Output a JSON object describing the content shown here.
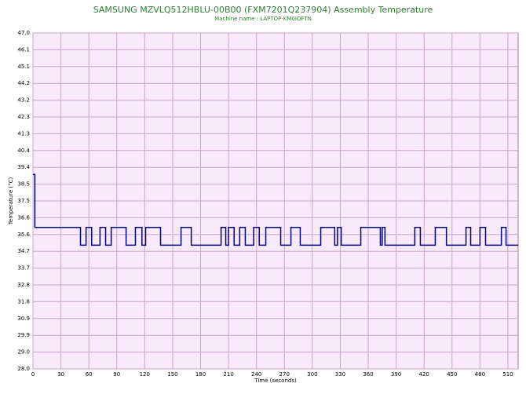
{
  "chart_data": {
    "type": "line",
    "title": "SAMSUNG MZVLQ512HBLU-00B00 (FXM7201Q237904) Assembly Temperature",
    "subtitle": "Machine name : LAPTOP-KM0IOFTN",
    "x_label": "Time (seconds)",
    "y_label": "Temperature (°C)",
    "x": [
      0,
      2,
      2,
      51,
      51,
      57,
      57,
      63,
      63,
      72,
      72,
      78,
      78,
      84,
      84,
      100,
      100,
      110,
      110,
      117,
      117,
      121,
      121,
      137,
      137,
      159,
      159,
      170,
      170,
      202,
      202,
      207,
      207,
      210,
      210,
      216,
      216,
      222,
      222,
      228,
      228,
      237,
      237,
      243,
      243,
      250,
      250,
      266,
      266,
      277,
      277,
      287,
      287,
      309,
      309,
      324,
      324,
      327,
      327,
      331,
      331,
      352,
      352,
      373,
      373,
      375,
      375,
      378,
      378,
      410,
      410,
      416,
      416,
      432,
      432,
      444,
      444,
      465,
      465,
      470,
      470,
      480,
      480,
      486,
      486,
      503,
      503,
      508,
      508,
      521
    ],
    "series": [
      {
        "name": "Temperature",
        "color": "#000080",
        "values": [
          39,
          39,
          36,
          36,
          35,
          35,
          36,
          36,
          35,
          35,
          36,
          36,
          35,
          35,
          36,
          36,
          35,
          35,
          36,
          36,
          35,
          35,
          36,
          36,
          35,
          35,
          36,
          36,
          35,
          35,
          36,
          36,
          35,
          35,
          36,
          36,
          35,
          35,
          36,
          36,
          35,
          35,
          36,
          36,
          35,
          35,
          36,
          36,
          35,
          35,
          36,
          36,
          35,
          35,
          36,
          36,
          35,
          35,
          36,
          36,
          35,
          35,
          36,
          36,
          35,
          35,
          36,
          36,
          35,
          35,
          36,
          36,
          35,
          35,
          36,
          36,
          35,
          35,
          36,
          36,
          35,
          35,
          36,
          36,
          35,
          35,
          36,
          36,
          35,
          35
        ]
      }
    ],
    "xlim": [
      0,
      521
    ],
    "ylim": [
      28,
      47
    ],
    "xticks": [
      0,
      30,
      60,
      90,
      120,
      150,
      180,
      210,
      240,
      270,
      300,
      330,
      360,
      390,
      420,
      450,
      480,
      510
    ],
    "yticks": [
      {
        "value": 47,
        "label": "47.0"
      },
      {
        "value": 46.05,
        "label": "46.1"
      },
      {
        "value": 45.1,
        "label": "45.1"
      },
      {
        "value": 44.15,
        "label": "44.2"
      },
      {
        "value": 43.2,
        "label": "43.2"
      },
      {
        "value": 42.25,
        "label": "42.3"
      },
      {
        "value": 41.3,
        "label": "41.3"
      },
      {
        "value": 40.35,
        "label": "40.4"
      },
      {
        "value": 39.4,
        "label": "39.4"
      },
      {
        "value": 38.45,
        "label": "38.5"
      },
      {
        "value": 37.5,
        "label": "37.5"
      },
      {
        "value": 36.55,
        "label": "36.6"
      },
      {
        "value": 35.6,
        "label": "35.6"
      },
      {
        "value": 34.65,
        "label": "34.7"
      },
      {
        "value": 33.7,
        "label": "33.7"
      },
      {
        "value": 32.75,
        "label": "32.8"
      },
      {
        "value": 31.8,
        "label": "31.8"
      },
      {
        "value": 30.85,
        "label": "30.9"
      },
      {
        "value": 29.9,
        "label": "29.9"
      },
      {
        "value": 28.95,
        "label": "29.0"
      },
      {
        "value": 28,
        "label": "28.0"
      }
    ],
    "grid": true
  }
}
